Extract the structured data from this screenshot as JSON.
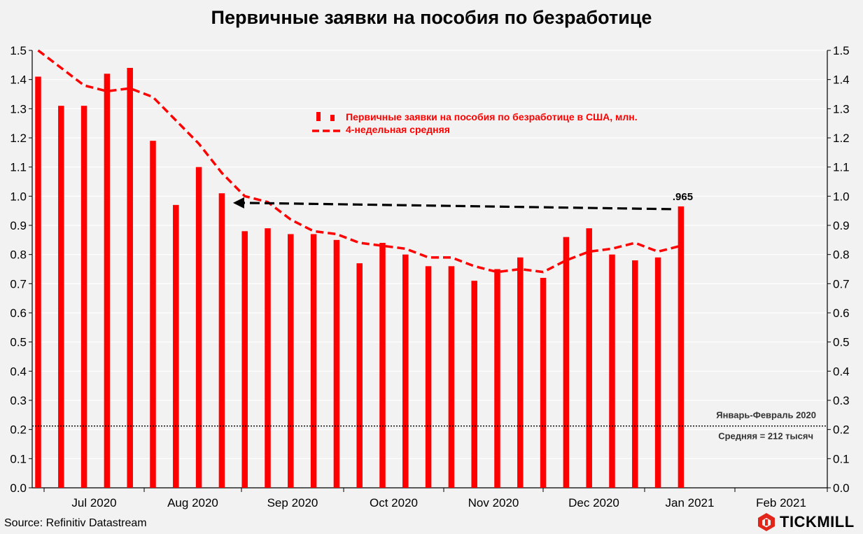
{
  "title": "Первичные заявки на пособия по безработице",
  "source": "Source: Refinitiv Datastream",
  "brand": "TICKMILL",
  "colors": {
    "bars": "#ff0000",
    "average": "#ff0000",
    "arrow": "#000000",
    "background": "#f2f2f2",
    "grid": "#ffffff"
  },
  "chart_data": {
    "type": "bar",
    "ylim": [
      0,
      1.5
    ],
    "yticks": [
      "0.0",
      "0.1",
      "0.2",
      "0.3",
      "0.4",
      "0.5",
      "0.6",
      "0.7",
      "0.8",
      "0.9",
      "1.0",
      "1.1",
      "1.2",
      "1.3",
      "1.4",
      "1.5"
    ],
    "xlabels": [
      "Jul 2020",
      "Aug 2020",
      "Sep 2020",
      "Oct 2020",
      "Nov 2020",
      "Dec 2020",
      "Jan 2021",
      "Feb 2021"
    ],
    "grid": true,
    "legend_position": "top-center",
    "series": [
      {
        "name": "Первичные заявки на пособия по безработице в США, млн.",
        "kind": "bar",
        "values": [
          1.41,
          1.31,
          1.31,
          1.42,
          1.44,
          1.19,
          0.97,
          1.1,
          1.01,
          0.88,
          0.89,
          0.87,
          0.87,
          0.85,
          0.77,
          0.84,
          0.8,
          0.76,
          0.76,
          0.71,
          0.75,
          0.79,
          0.72,
          0.86,
          0.89,
          0.8,
          0.78,
          0.79,
          0.965
        ]
      },
      {
        "name": "4-недельная средняя",
        "kind": "dashed-line",
        "values": [
          1.5,
          1.44,
          1.38,
          1.36,
          1.37,
          1.34,
          1.26,
          1.18,
          1.08,
          1.0,
          0.98,
          0.92,
          0.88,
          0.87,
          0.84,
          0.83,
          0.82,
          0.79,
          0.79,
          0.76,
          0.74,
          0.75,
          0.74,
          0.78,
          0.81,
          0.82,
          0.84,
          0.81,
          0.83
        ]
      }
    ],
    "reference_line": {
      "value": 0.212,
      "label_top": "Январь-Февраль 2020",
      "label_bottom": "Средняя = 212 тысяч"
    },
    "annotation": {
      "text": ".965",
      "arrow_from_index": 28,
      "arrow_to_index": 8,
      "arrow_value": 0.97
    }
  }
}
